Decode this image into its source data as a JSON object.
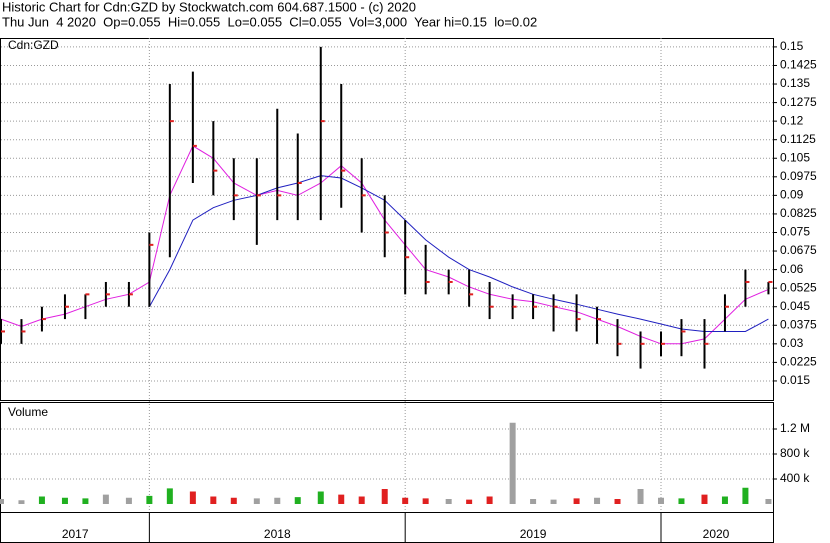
{
  "header": {
    "title": "Historic Chart for Cdn:GZD by Stockwatch.com 604.687.1500 - (c) 2020",
    "subtitle": "Thu Jun  4 2020  Op=0.055  Hi=0.055  Lo=0.055  Cl=0.055  Vol=3,000  Year hi=0.15  lo=0.02"
  },
  "chart_data": [
    {
      "type": "ohlc",
      "label": "Cdn:GZD",
      "x": [
        2017.42,
        2017.5,
        2017.58,
        2017.67,
        2017.75,
        2017.83,
        2017.92,
        2018.0,
        2018.08,
        2018.17,
        2018.25,
        2018.33,
        2018.42,
        2018.5,
        2018.58,
        2018.67,
        2018.75,
        2018.83,
        2018.92,
        2019.0,
        2019.08,
        2019.17,
        2019.25,
        2019.33,
        2019.42,
        2019.5,
        2019.58,
        2019.67,
        2019.75,
        2019.83,
        2019.92,
        2020.0,
        2020.08,
        2020.17,
        2020.25,
        2020.33,
        2020.42
      ],
      "high": [
        0.04,
        0.04,
        0.045,
        0.05,
        0.05,
        0.055,
        0.055,
        0.075,
        0.135,
        0.14,
        0.12,
        0.105,
        0.105,
        0.125,
        0.115,
        0.15,
        0.135,
        0.105,
        0.09,
        0.08,
        0.07,
        0.06,
        0.06,
        0.055,
        0.05,
        0.05,
        0.05,
        0.05,
        0.045,
        0.04,
        0.035,
        0.035,
        0.04,
        0.04,
        0.05,
        0.06,
        0.055
      ],
      "low": [
        0.03,
        0.03,
        0.035,
        0.04,
        0.04,
        0.045,
        0.045,
        0.045,
        0.065,
        0.095,
        0.09,
        0.08,
        0.07,
        0.08,
        0.08,
        0.08,
        0.085,
        0.075,
        0.065,
        0.05,
        0.05,
        0.05,
        0.045,
        0.04,
        0.04,
        0.04,
        0.035,
        0.035,
        0.03,
        0.025,
        0.02,
        0.025,
        0.025,
        0.02,
        0.035,
        0.045,
        0.05
      ],
      "close": [
        0.035,
        0.035,
        0.04,
        0.045,
        0.05,
        0.05,
        0.05,
        0.07,
        0.12,
        0.11,
        0.1,
        0.09,
        0.09,
        0.09,
        0.095,
        0.12,
        0.1,
        0.09,
        0.075,
        0.065,
        0.055,
        0.055,
        0.05,
        0.045,
        0.045,
        0.045,
        0.045,
        0.04,
        0.04,
        0.03,
        0.03,
        0.03,
        0.035,
        0.03,
        0.045,
        0.055,
        0.055
      ],
      "series": [
        {
          "color": "#e020e0",
          "values": [
            0.04,
            0.037,
            0.04,
            0.042,
            0.045,
            0.048,
            0.05,
            0.055,
            0.09,
            0.11,
            0.105,
            0.095,
            0.09,
            0.092,
            0.09,
            0.095,
            0.102,
            0.095,
            0.08,
            0.07,
            0.06,
            0.057,
            0.053,
            0.05,
            0.048,
            0.047,
            0.045,
            0.043,
            0.04,
            0.037,
            0.033,
            0.03,
            0.03,
            0.032,
            0.04,
            0.048,
            0.052
          ]
        },
        {
          "color": "#2020c0",
          "values": [
            null,
            null,
            null,
            null,
            null,
            null,
            null,
            0.045,
            0.06,
            0.08,
            0.085,
            0.088,
            0.09,
            0.093,
            0.095,
            0.098,
            0.097,
            0.093,
            0.088,
            0.08,
            0.072,
            0.065,
            0.06,
            0.057,
            0.053,
            0.05,
            0.048,
            0.046,
            0.044,
            0.042,
            0.04,
            0.038,
            0.036,
            0.035,
            0.035,
            0.035,
            0.04
          ]
        }
      ],
      "xlim": [
        2017.42,
        2020.43
      ],
      "ylim": [
        0.0073,
        0.1536
      ],
      "yticks": [
        0.15,
        0.1425,
        0.135,
        0.1275,
        0.12,
        0.1125,
        0.105,
        0.0975,
        0.09,
        0.0825,
        0.075,
        0.0675,
        0.06,
        0.0525,
        0.045,
        0.0375,
        0.03,
        0.0225,
        0.015
      ],
      "grid": true
    },
    {
      "type": "volume",
      "label": "Volume",
      "values": [
        80000,
        60000,
        120000,
        100000,
        90000,
        150000,
        100000,
        130000,
        250000,
        200000,
        120000,
        100000,
        90000,
        100000,
        110000,
        200000,
        150000,
        120000,
        240000,
        100000,
        90000,
        80000,
        70000,
        120000,
        1300000,
        80000,
        70000,
        90000,
        100000,
        80000,
        240000,
        100000,
        90000,
        150000,
        120000,
        260000,
        80000
      ],
      "ylim": [
        -128000,
        1632000
      ],
      "yticks": [
        {
          "value": 1200000,
          "label": "1.2 M"
        },
        {
          "value": 800000,
          "label": "800 k"
        },
        {
          "value": 400000,
          "label": "400 k"
        }
      ],
      "xticks": [
        {
          "value": 2017,
          "label": "2017"
        },
        {
          "value": 2018,
          "label": "2018"
        },
        {
          "value": 2019,
          "label": "2019"
        },
        {
          "value": 2020,
          "label": "2020"
        }
      ],
      "colors": {
        "up": "#20b020",
        "down": "#e02020",
        "flat": "#a0a0a0"
      }
    }
  ]
}
